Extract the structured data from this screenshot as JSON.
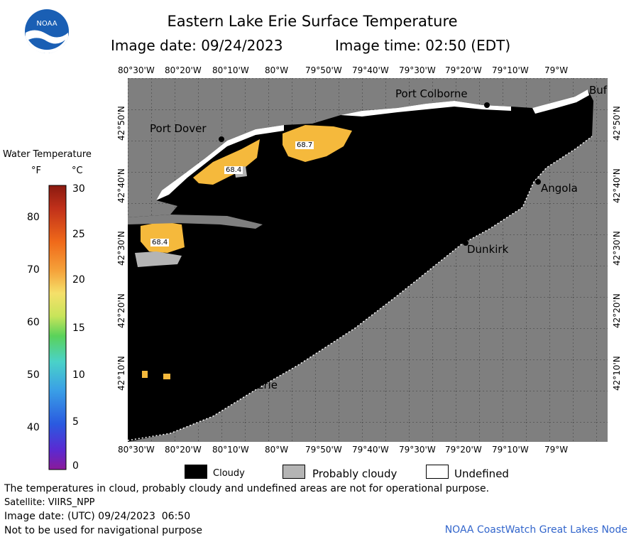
{
  "header": {
    "title": "Eastern Lake Erie Surface Temperature",
    "image_date_label": "Image date: 09/24/2023",
    "image_time_label": "Image time: 02:50 (EDT)",
    "logo_text": "NOAA"
  },
  "colorbar": {
    "title": "Water Temperature",
    "unit_f": "°F",
    "unit_c": "°C",
    "f_ticks": [
      "80",
      "70",
      "60",
      "50",
      "40"
    ],
    "c_ticks": [
      "30",
      "25",
      "20",
      "15",
      "10",
      "5",
      "0"
    ]
  },
  "axes": {
    "lon_labels": [
      "80°30'W",
      "80°20'W",
      "80°10'W",
      "80°W",
      "79°50'W",
      "79°40'W",
      "79°30'W",
      "79°20'W",
      "79°10'W",
      "79°W"
    ],
    "lat_labels": [
      "42°50'N",
      "42°40'N",
      "42°30'N",
      "42°20'N",
      "42°10'N"
    ]
  },
  "places": {
    "port_colborne": "Port Colborne",
    "port_dover": "Port Dover",
    "angola": "Angola",
    "dunkirk": "Dunkirk",
    "erie": "Erie",
    "buffalo": "Buf"
  },
  "temps": {
    "t1": "68.7",
    "t2": "68.4",
    "t3": "68.4"
  },
  "legend": {
    "cloudy": "Cloudy",
    "probably_cloudy": "Probably cloudy",
    "undefined": "Undefined"
  },
  "footer": {
    "disclaimer": "The temperatures in cloud, probably cloudy and undefined areas are not for operational purpose.",
    "satellite": "Satellite: VIIRS_NPP",
    "utc_date": "Image date: (UTC) 09/24/2023  06:50",
    "nav_warning": "Not to be used for navigational purpose",
    "credit": "NOAA CoastWatch Great Lakes Node"
  },
  "colors": {
    "cloudy": "#000000",
    "probably_cloudy": "#b4b4b4",
    "undefined": "#ffffff",
    "land": "#7f7f7f",
    "warm_water": "#f5b93c",
    "credit": "#3366cc"
  }
}
